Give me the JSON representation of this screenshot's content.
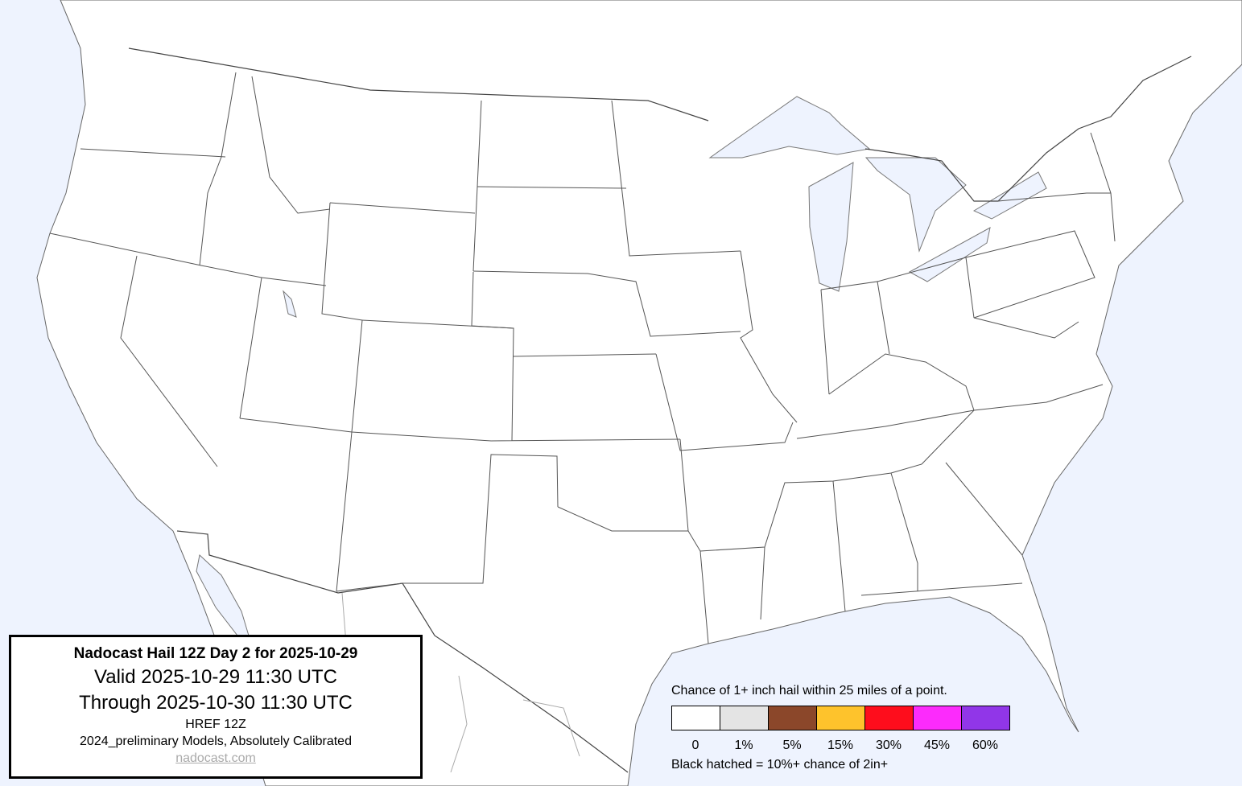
{
  "info": {
    "title": "Nadocast Hail 12Z Day 2 for 2025-10-29",
    "valid": "Valid 2025-10-29 11:30 UTC",
    "through": "Through 2025-10-30 11:30 UTC",
    "model": "HREF 12Z",
    "calibration": "2024_preliminary Models, Absolutely Calibrated",
    "link": "nadocast.com"
  },
  "legend": {
    "title": "Chance of 1+ inch hail within 25 miles of a point.",
    "bins": [
      {
        "label": "0",
        "color": "#ffffff"
      },
      {
        "label": "1%",
        "color": "#e4e4e4"
      },
      {
        "label": "5%",
        "color": "#8b472a"
      },
      {
        "label": "15%",
        "color": "#fec32c"
      },
      {
        "label": "30%",
        "color": "#fe0d1c"
      },
      {
        "label": "45%",
        "color": "#fc2bfc"
      },
      {
        "label": "60%",
        "color": "#9136e8"
      }
    ],
    "note": "Black hatched = 10%+ chance of 2in+"
  },
  "map": {
    "water_color": "#eef3fe",
    "land_color": "#ffffff"
  }
}
